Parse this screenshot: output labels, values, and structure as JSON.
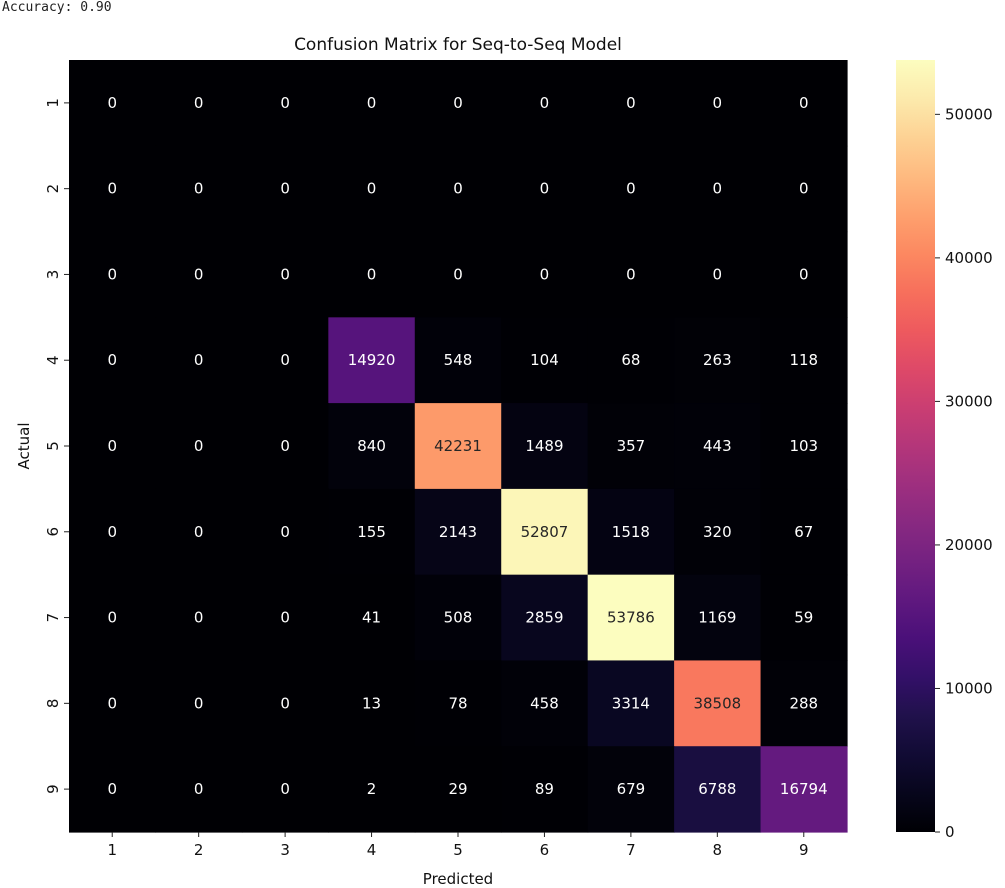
{
  "output_text": "Accuracy: 0.90",
  "chart_data": {
    "type": "heatmap",
    "title": "Confusion Matrix for Seq-to-Seq Model",
    "xlabel": "Predicted",
    "ylabel": "Actual",
    "x_categories": [
      "1",
      "2",
      "3",
      "4",
      "5",
      "6",
      "7",
      "8",
      "9"
    ],
    "y_categories": [
      "1",
      "2",
      "3",
      "4",
      "5",
      "6",
      "7",
      "8",
      "9"
    ],
    "values": [
      [
        0,
        0,
        0,
        0,
        0,
        0,
        0,
        0,
        0
      ],
      [
        0,
        0,
        0,
        0,
        0,
        0,
        0,
        0,
        0
      ],
      [
        0,
        0,
        0,
        0,
        0,
        0,
        0,
        0,
        0
      ],
      [
        0,
        0,
        0,
        14920,
        548,
        104,
        68,
        263,
        118
      ],
      [
        0,
        0,
        0,
        840,
        42231,
        1489,
        357,
        443,
        103
      ],
      [
        0,
        0,
        0,
        155,
        2143,
        52807,
        1518,
        320,
        67
      ],
      [
        0,
        0,
        0,
        41,
        508,
        2859,
        53786,
        1169,
        59
      ],
      [
        0,
        0,
        0,
        13,
        78,
        458,
        3314,
        38508,
        288
      ],
      [
        0,
        0,
        0,
        2,
        29,
        89,
        679,
        6788,
        16794
      ]
    ],
    "colormap": "magma",
    "color_range": [
      0,
      53786
    ],
    "colorbar_ticks": [
      0,
      10000,
      20000,
      30000,
      40000,
      50000
    ],
    "annotations": true
  }
}
